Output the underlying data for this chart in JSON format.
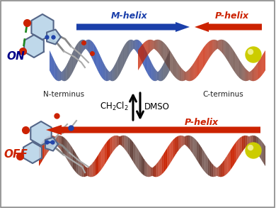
{
  "bg_color": "#ffffff",
  "border_color": "#888888",
  "blue_helix_color": "#1a3faa",
  "red_helix_color": "#cc2200",
  "blue_arrow_color": "#1a3faa",
  "red_arrow_color": "#cc2200",
  "on_color": "#000088",
  "off_color": "#cc2200",
  "terminus_color": "#222222",
  "yellow_color": "#cccc00",
  "red_sphere_color": "#cc2200",
  "green_dashed_color": "#228822",
  "blue_ring_color": "#2244aa",
  "ring_face_color": "#b8d4e8",
  "ring_edge_color": "#556688",
  "m_helix_label": "M-helix",
  "p_helix_label": "P-helix",
  "n_terminus": "N-terminus",
  "c_terminus": "C-terminus",
  "on_label": "ON",
  "off_label": "OFF"
}
